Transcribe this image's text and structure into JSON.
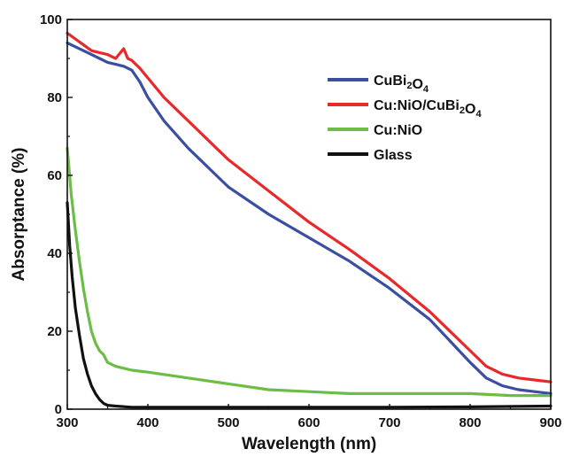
{
  "chart_data": {
    "type": "line",
    "xlabel": "Wavelength (nm)",
    "ylabel": "Absorptance (%)",
    "xlim": [
      300,
      900
    ],
    "ylim": [
      0,
      100
    ],
    "xticks": [
      300,
      400,
      500,
      600,
      700,
      800,
      900
    ],
    "yticks": [
      0,
      20,
      40,
      60,
      80,
      100
    ],
    "grid": false,
    "legend_position": "top-right",
    "series": [
      {
        "name": "CuBi2O4",
        "legend_parts": [
          [
            "CuBi",
            ""
          ],
          [
            "2",
            "sub"
          ],
          [
            "O",
            ""
          ],
          [
            "4",
            "sub"
          ]
        ],
        "color": "#3a4fa1",
        "x": [
          300,
          310,
          320,
          330,
          340,
          350,
          360,
          370,
          380,
          390,
          400,
          420,
          450,
          480,
          500,
          550,
          600,
          650,
          700,
          750,
          800,
          820,
          840,
          860,
          880,
          900
        ],
        "y": [
          94,
          93,
          92,
          91,
          90,
          89,
          88.5,
          88,
          87,
          84,
          80,
          74,
          67,
          61,
          57,
          50,
          44,
          38,
          31,
          23,
          12,
          8,
          6,
          5,
          4.5,
          4
        ]
      },
      {
        "name": "Cu:NiO/CuBi2O4",
        "legend_parts": [
          [
            "Cu:NiO/CuBi",
            ""
          ],
          [
            "2",
            "sub"
          ],
          [
            "O",
            ""
          ],
          [
            "4",
            "sub"
          ]
        ],
        "color": "#e8282b",
        "x": [
          300,
          310,
          320,
          330,
          340,
          350,
          360,
          370,
          375,
          380,
          390,
          400,
          420,
          450,
          480,
          500,
          550,
          600,
          650,
          700,
          750,
          800,
          820,
          840,
          860,
          880,
          900
        ],
        "y": [
          96.5,
          95,
          93.5,
          92,
          91.5,
          91,
          90,
          92.5,
          90,
          89.5,
          87.5,
          85,
          80,
          74,
          68,
          64,
          56,
          48,
          41,
          33.5,
          25,
          15,
          11,
          9,
          8,
          7.5,
          7
        ]
      },
      {
        "name": "Cu:NiO",
        "legend_parts": [
          [
            "Cu:NiO",
            ""
          ]
        ],
        "color": "#6cbd45",
        "x": [
          300,
          305,
          310,
          315,
          320,
          325,
          330,
          335,
          340,
          345,
          350,
          360,
          370,
          380,
          400,
          450,
          500,
          550,
          600,
          650,
          700,
          750,
          800,
          850,
          900
        ],
        "y": [
          67,
          55,
          46,
          38,
          31,
          25,
          20,
          17,
          15,
          14,
          12,
          11,
          10.5,
          10,
          9.5,
          8,
          6.5,
          5,
          4.5,
          4,
          4,
          4,
          4,
          3.5,
          3.5
        ]
      },
      {
        "name": "Glass",
        "legend_parts": [
          [
            "Glass",
            ""
          ]
        ],
        "color": "#111111",
        "x": [
          300,
          303,
          306,
          310,
          315,
          320,
          325,
          330,
          335,
          340,
          345,
          350,
          360,
          380,
          400,
          500,
          600,
          700,
          800,
          900
        ],
        "y": [
          53,
          42,
          34,
          26,
          19,
          13,
          9,
          6,
          4,
          2.5,
          1.5,
          1,
          0.8,
          0.5,
          0.5,
          0.5,
          0.5,
          0.5,
          0.6,
          0.8
        ]
      }
    ]
  }
}
